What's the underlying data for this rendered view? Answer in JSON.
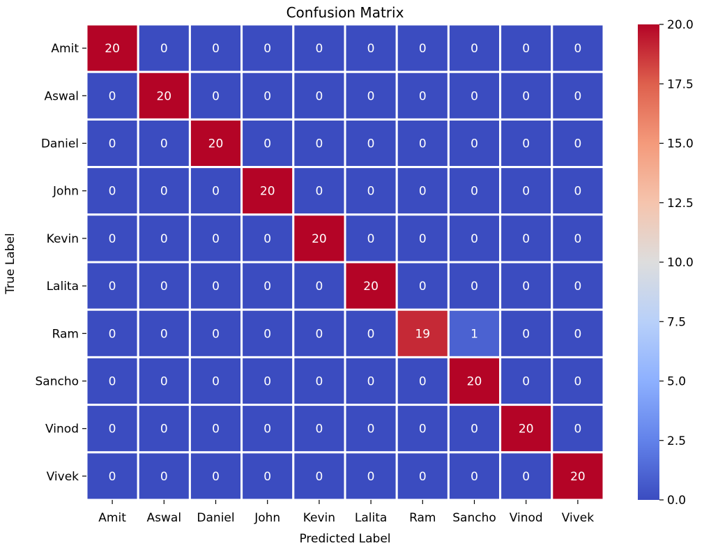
{
  "chart_data": {
    "type": "heatmap",
    "title": "Confusion Matrix",
    "xlabel": "Predicted Label",
    "ylabel": "True Label",
    "x_categories": [
      "Amit",
      "Aswal",
      "Daniel",
      "John",
      "Kevin",
      "Lalita",
      "Ram",
      "Sancho",
      "Vinod",
      "Vivek"
    ],
    "y_categories": [
      "Amit",
      "Aswal",
      "Daniel",
      "John",
      "Kevin",
      "Lalita",
      "Ram",
      "Sancho",
      "Vinod",
      "Vivek"
    ],
    "values": [
      [
        20,
        0,
        0,
        0,
        0,
        0,
        0,
        0,
        0,
        0
      ],
      [
        0,
        20,
        0,
        0,
        0,
        0,
        0,
        0,
        0,
        0
      ],
      [
        0,
        0,
        20,
        0,
        0,
        0,
        0,
        0,
        0,
        0
      ],
      [
        0,
        0,
        0,
        20,
        0,
        0,
        0,
        0,
        0,
        0
      ],
      [
        0,
        0,
        0,
        0,
        20,
        0,
        0,
        0,
        0,
        0
      ],
      [
        0,
        0,
        0,
        0,
        0,
        20,
        0,
        0,
        0,
        0
      ],
      [
        0,
        0,
        0,
        0,
        0,
        0,
        19,
        1,
        0,
        0
      ],
      [
        0,
        0,
        0,
        0,
        0,
        0,
        0,
        20,
        0,
        0
      ],
      [
        0,
        0,
        0,
        0,
        0,
        0,
        0,
        0,
        20,
        0
      ],
      [
        0,
        0,
        0,
        0,
        0,
        0,
        0,
        0,
        0,
        20
      ]
    ],
    "colormap": "coolwarm",
    "color_range": [
      0,
      20
    ],
    "colorbar_ticks": [
      "0.0",
      "2.5",
      "5.0",
      "7.5",
      "10.0",
      "12.5",
      "15.0",
      "17.5",
      "20.0"
    ],
    "cell_separator_color": "#ffffff"
  }
}
